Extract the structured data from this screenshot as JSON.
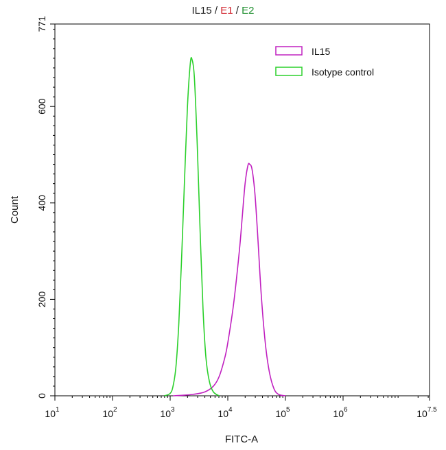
{
  "chart_data": {
    "type": "area",
    "title_parts": [
      {
        "text": "IL15",
        "color": "#222222"
      },
      {
        "text": " / ",
        "color": "#222222"
      },
      {
        "text": "E1",
        "color": "#d0202a"
      },
      {
        "text": " / ",
        "color": "#222222"
      },
      {
        "text": "E2",
        "color": "#1f8f2f"
      }
    ],
    "xlabel": "FITC-A",
    "ylabel": "Count",
    "x_scale": "log10",
    "xlim": [
      1,
      7.5
    ],
    "ylim": [
      0,
      771
    ],
    "x_ticks": [
      {
        "value": 1,
        "base": "10",
        "exp": "1"
      },
      {
        "value": 2,
        "base": "10",
        "exp": "2"
      },
      {
        "value": 3,
        "base": "10",
        "exp": "3"
      },
      {
        "value": 4,
        "base": "10",
        "exp": "4"
      },
      {
        "value": 5,
        "base": "10",
        "exp": "5"
      },
      {
        "value": 6,
        "base": "10",
        "exp": "6"
      },
      {
        "value": 7.5,
        "base": "10",
        "exp": "7.5"
      }
    ],
    "y_ticks": [
      "0",
      "200",
      "400",
      "600",
      "771"
    ],
    "grid": false,
    "legend_position": "top-right",
    "series": [
      {
        "name": "IL15",
        "color": "#c020c0",
        "points": [
          [
            3.05,
            0
          ],
          [
            3.2,
            1
          ],
          [
            3.4,
            3
          ],
          [
            3.6,
            8
          ],
          [
            3.75,
            20
          ],
          [
            3.85,
            40
          ],
          [
            3.95,
            80
          ],
          [
            4.0,
            110
          ],
          [
            4.1,
            190
          ],
          [
            4.2,
            300
          ],
          [
            4.25,
            370
          ],
          [
            4.3,
            440
          ],
          [
            4.35,
            478
          ],
          [
            4.38,
            480
          ],
          [
            4.42,
            470
          ],
          [
            4.47,
            420
          ],
          [
            4.52,
            330
          ],
          [
            4.58,
            210
          ],
          [
            4.65,
            110
          ],
          [
            4.72,
            50
          ],
          [
            4.8,
            15
          ],
          [
            4.88,
            3
          ],
          [
            5.0,
            0
          ]
        ]
      },
      {
        "name": "Isotype control",
        "color": "#2bd02b",
        "points": [
          [
            2.9,
            0
          ],
          [
            3.0,
            5
          ],
          [
            3.05,
            20
          ],
          [
            3.1,
            60
          ],
          [
            3.15,
            150
          ],
          [
            3.2,
            290
          ],
          [
            3.25,
            450
          ],
          [
            3.3,
            600
          ],
          [
            3.35,
            690
          ],
          [
            3.38,
            697
          ],
          [
            3.42,
            660
          ],
          [
            3.47,
            520
          ],
          [
            3.52,
            340
          ],
          [
            3.57,
            180
          ],
          [
            3.62,
            80
          ],
          [
            3.68,
            30
          ],
          [
            3.75,
            8
          ],
          [
            3.85,
            0
          ]
        ]
      }
    ]
  }
}
